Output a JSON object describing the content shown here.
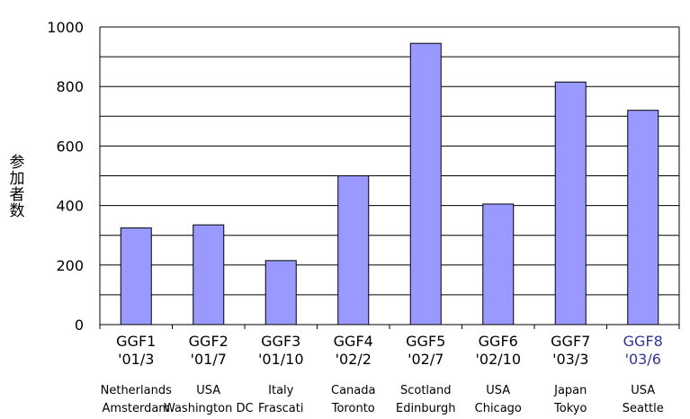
{
  "chart_data": {
    "type": "bar",
    "title": "",
    "xlabel": "",
    "ylabel": "参加者数",
    "ylim": [
      0,
      1000
    ],
    "yticks": [
      0,
      200,
      400,
      600,
      800,
      1000
    ],
    "grid": "horizontal",
    "categories": [
      {
        "event": "GGF1",
        "date": "'01/3",
        "country": "Netherlands",
        "city": "Amsterdam",
        "highlight": false
      },
      {
        "event": "GGF2",
        "date": "'01/7",
        "country": "USA",
        "city": "Washington DC",
        "highlight": false
      },
      {
        "event": "GGF3",
        "date": "'01/10",
        "country": "Italy",
        "city": "Frascati",
        "highlight": false
      },
      {
        "event": "GGF4",
        "date": "'02/2",
        "country": "Canada",
        "city": "Toronto",
        "highlight": false
      },
      {
        "event": "GGF5",
        "date": "'02/7",
        "country": "Scotland",
        "city": "Edinburgh",
        "highlight": false
      },
      {
        "event": "GGF6",
        "date": "'02/10",
        "country": "USA",
        "city": "Chicago",
        "highlight": false
      },
      {
        "event": "GGF7",
        "date": "'03/3",
        "country": "Japan",
        "city": "Tokyo",
        "highlight": false
      },
      {
        "event": "GGF8",
        "date": "'03/6",
        "country": "USA",
        "city": "Seattle",
        "highlight": true
      }
    ],
    "values": [
      325,
      335,
      215,
      500,
      945,
      405,
      815,
      720
    ],
    "colors": {
      "bar_fill": "#9999ff",
      "bar_stroke": "#000000",
      "grid": "#000000",
      "highlight_text": "#333399",
      "text": "#000000"
    }
  }
}
